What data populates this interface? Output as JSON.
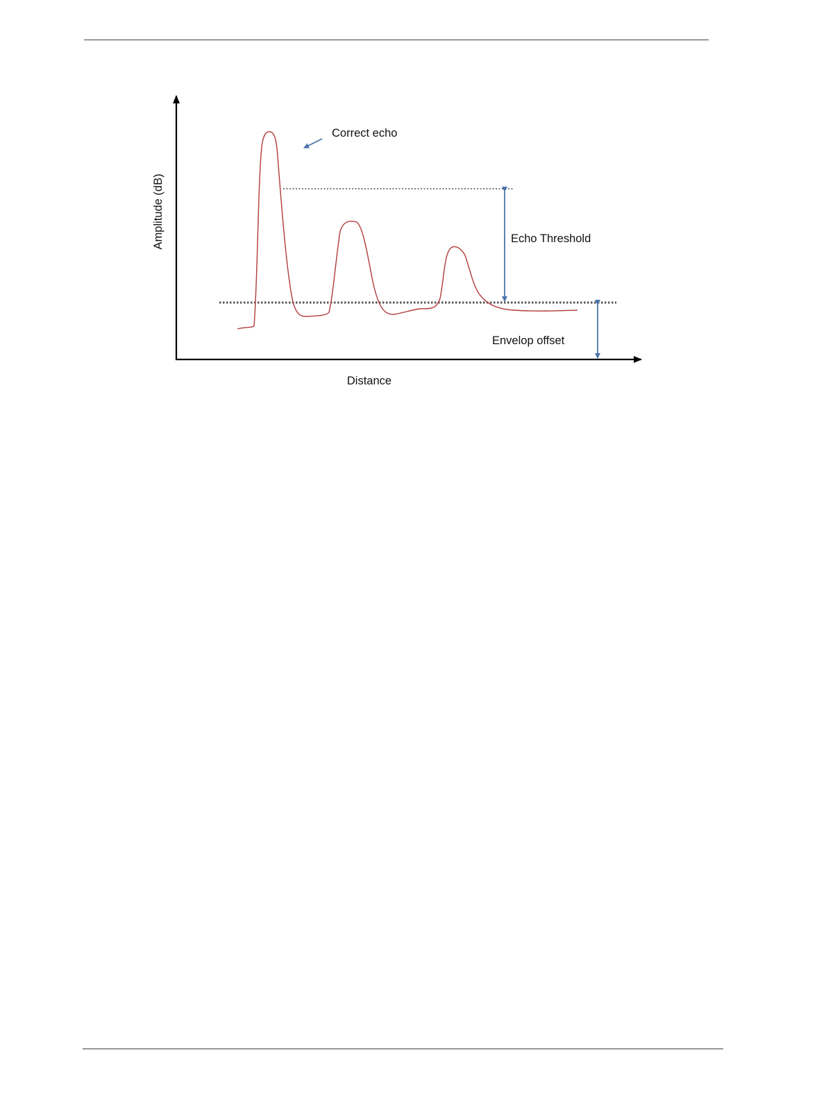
{
  "diagram": {
    "y_axis_label": "Amplitude (dB)",
    "x_axis_label": "Distance",
    "annotations": {
      "correct_echo": "Correct echo",
      "echo_threshold": "Echo Threshold",
      "envelop_offset": "Envelop offset"
    },
    "colors": {
      "echo_curve": "#b03a3a",
      "dimension_arrow": "#4a74a8",
      "threshold_line": "#7a7a7a",
      "offset_line": "#555555",
      "axes": "#000000"
    }
  }
}
